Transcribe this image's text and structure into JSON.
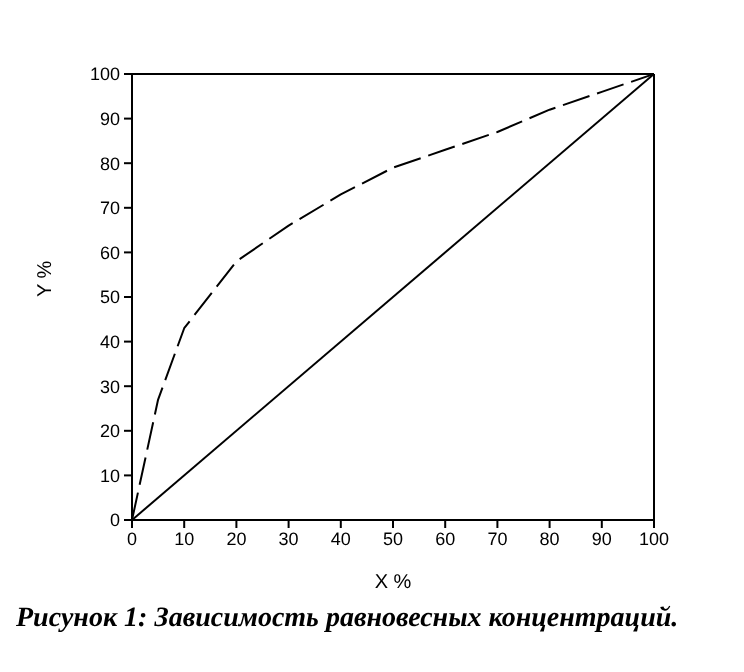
{
  "chart_data": {
    "type": "line",
    "xlabel": "X %",
    "ylabel": "Y %",
    "annotations": [
      "Рисунок 1: Зависимость равновесных концентраций."
    ],
    "xlim": [
      0,
      100
    ],
    "ylim": [
      0,
      100
    ],
    "xticks": [
      0,
      10,
      20,
      30,
      40,
      50,
      60,
      70,
      80,
      90,
      100
    ],
    "yticks": [
      0,
      10,
      20,
      30,
      40,
      50,
      60,
      70,
      80,
      90,
      100
    ],
    "series": [
      {
        "color": "#000000",
        "line_style": "dashed",
        "x": [
          0,
          5,
          10,
          20,
          30,
          40,
          50,
          60,
          70,
          80,
          90,
          100
        ],
        "values": [
          0,
          27,
          43,
          58,
          66,
          73,
          79,
          83,
          87,
          92,
          96,
          100
        ]
      },
      {
        "color": "#000000",
        "line_style": "solid",
        "x": [
          0,
          100
        ],
        "values": [
          0,
          100
        ]
      }
    ]
  }
}
